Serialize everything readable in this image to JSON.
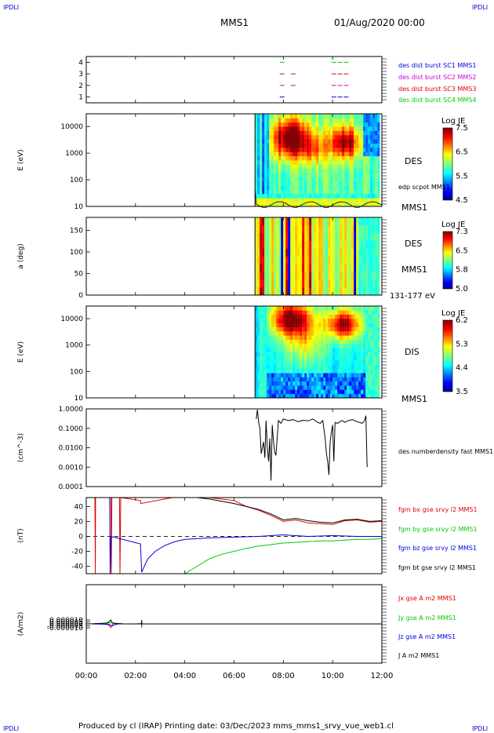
{
  "header": {
    "corner_label": "IPDLI",
    "spacecraft": "MMS1",
    "date": "01/Aug/2020 00:00"
  },
  "footer": {
    "text": "Produced by cl (IRAP)   Printing date: 03/Dec/2023   mms_mms1_srvy_vue_web1.cl"
  },
  "colors": {
    "red": "#e00000",
    "green": "#00cc00",
    "blue": "#0000e0",
    "magenta": "#d000d0",
    "black": "#000000"
  },
  "chart_data": [
    {
      "type": "scatter",
      "panel": "burst availability",
      "ylim": [
        0.5,
        4.5
      ],
      "yticks": [
        "1",
        "2",
        "3",
        "4"
      ],
      "series": [
        {
          "name": "des dist burst SC1 MMS1",
          "color": "#0000e0",
          "y": 1,
          "x": [
            7.95,
            10.05,
            10.3,
            10.55
          ]
        },
        {
          "name": "des dist burst SC2 MMS2",
          "color": "#d000d0",
          "y": 2,
          "x": [
            7.95,
            8.4,
            10.05,
            10.3,
            10.55
          ]
        },
        {
          "name": "des dist burst SC3 MMS3",
          "color": "#e00000",
          "y": 3,
          "x": [
            7.95,
            8.4,
            10.05,
            10.3,
            10.55
          ]
        },
        {
          "name": "des dist burst SC4 MMS4",
          "color": "#00cc00",
          "y": 4,
          "x": [
            7.95,
            10.05,
            10.3,
            10.55
          ]
        }
      ]
    },
    {
      "type": "heatmap",
      "panel": "DES energy spectrogram",
      "ylabel": "E (eV)",
      "yscale": "log",
      "ylim": [
        10,
        30000
      ],
      "yticks": [
        "10",
        "100",
        "1000",
        "10000"
      ],
      "data_start": 6.85,
      "colorbar": {
        "title": "Log JE",
        "ticks": [
          "7.5",
          "6.5",
          "5.5",
          "4.5"
        ],
        "range": [
          4.5,
          7.6
        ]
      },
      "right_labels": [
        "DES",
        "edp scpot MMS1",
        "MMS1"
      ],
      "hotspots": [
        {
          "t": 8.2,
          "logE": 3.15,
          "v": 7.5
        },
        {
          "t": 9.1,
          "logE": 3.0,
          "v": 6.8
        },
        {
          "t": 10.5,
          "logE": 2.95,
          "v": 7.2
        }
      ]
    },
    {
      "type": "heatmap",
      "panel": "DES pitch angle",
      "ylabel": "a (deg)",
      "ylim": [
        0,
        180
      ],
      "yticks": [
        "0",
        "50",
        "100",
        "150"
      ],
      "data_start": 6.85,
      "colorbar": {
        "title": "Log JE",
        "ticks": [
          "7.3",
          "6.5",
          "5.8",
          "5.0"
        ],
        "range": [
          5.0,
          7.3
        ]
      },
      "right_labels": [
        "DES",
        "MMS1",
        "131-177 eV"
      ]
    },
    {
      "type": "heatmap",
      "panel": "DIS energy spectrogram",
      "ylabel": "E (eV)",
      "yscale": "log",
      "ylim": [
        10,
        30000
      ],
      "yticks": [
        "10",
        "100",
        "1000",
        "10000"
      ],
      "data_start": 6.85,
      "colorbar": {
        "title": "Log JE",
        "ticks": [
          "6.2",
          "5.3",
          "4.4",
          "3.5"
        ],
        "range": [
          3.5,
          6.2
        ]
      },
      "right_labels": [
        "DIS",
        "MMS1"
      ],
      "hotspots": [
        {
          "t": 8.3,
          "logE": 3.9,
          "v": 6.2
        },
        {
          "t": 10.4,
          "logE": 3.75,
          "v": 6.1
        }
      ]
    },
    {
      "type": "line",
      "panel": "electron density",
      "ylabel": "(cm^-3)",
      "yscale": "log",
      "ylim": [
        0.0001,
        1.0
      ],
      "yticks": [
        "0.0001",
        "0.0010",
        "0.0100",
        "0.1000",
        "1.0000"
      ],
      "series": [
        {
          "name": "des numberdensity fast MMS1",
          "color": "#000000",
          "x": [
            6.9,
            6.95,
            7.0,
            7.05,
            7.1,
            7.2,
            7.25,
            7.3,
            7.35,
            7.4,
            7.45,
            7.5,
            7.55,
            7.6,
            7.65,
            7.7,
            7.8,
            7.9,
            8.0,
            8.2,
            8.4,
            8.6,
            8.8,
            9.0,
            9.2,
            9.4,
            9.5,
            9.6,
            9.7,
            9.75,
            9.8,
            9.85,
            9.9,
            9.95,
            10.0,
            10.05,
            10.1,
            10.2,
            10.3,
            10.4,
            10.5,
            10.6,
            10.8,
            11.0,
            11.2,
            11.3,
            11.35,
            11.4
          ],
          "y": [
            0.3,
            0.9,
            0.2,
            0.1,
            0.005,
            0.02,
            0.003,
            0.25,
            0.01,
            0.002,
            0.03,
            0.0002,
            0.15,
            0.02,
            0.006,
            0.004,
            0.25,
            0.18,
            0.3,
            0.25,
            0.28,
            0.22,
            0.26,
            0.24,
            0.3,
            0.2,
            0.18,
            0.25,
            0.03,
            0.005,
            0.002,
            0.0004,
            0.02,
            0.06,
            0.15,
            0.002,
            0.2,
            0.18,
            0.22,
            0.25,
            0.2,
            0.24,
            0.28,
            0.22,
            0.18,
            0.25,
            0.45,
            0.001
          ]
        }
      ]
    },
    {
      "type": "line",
      "panel": "FGM magnetic field",
      "ylabel": "(nT)",
      "ylim": [
        -50,
        52
      ],
      "yticks": [
        "-40",
        "-20",
        "0",
        "20",
        "40"
      ],
      "series": [
        {
          "name": "fgm bx gse srvy l2 MMS1",
          "color": "#e00000",
          "x": [
            0.35,
            0.37,
            0.38,
            1.0,
            1.02,
            1.04,
            1.35,
            1.37,
            1.4,
            2.2,
            2.22,
            3.5,
            5.0,
            6.0,
            6.5,
            7.0,
            7.5,
            8.0,
            8.5,
            9.0,
            9.5,
            10.0,
            10.5,
            11.0,
            11.5,
            12.0
          ],
          "y": [
            52,
            -50,
            52,
            52,
            -50,
            52,
            52,
            -50,
            52,
            48,
            44,
            52,
            52,
            48,
            40,
            35,
            28,
            20,
            22,
            18,
            17,
            16,
            21,
            22,
            19,
            20
          ]
        },
        {
          "name": "fgm by gse srvy l2 MMS1",
          "color": "#00cc00",
          "x": [
            4.0,
            4.5,
            5.0,
            5.5,
            6.0,
            6.5,
            7.0,
            7.5,
            8.0,
            8.5,
            9.0,
            9.5,
            10.0,
            10.5,
            11.0,
            11.5,
            12.0
          ],
          "y": [
            -50,
            -40,
            -30,
            -24,
            -20,
            -16,
            -13,
            -11,
            -9,
            -8,
            -7,
            -6,
            -6,
            -5,
            -4,
            -4,
            -3
          ]
        },
        {
          "name": "fgm bz gse srvy l2 MMS1",
          "color": "#0000e0",
          "x": [
            0.95,
            0.97,
            1.0,
            2.2,
            2.25,
            2.5,
            2.8,
            3.2,
            3.6,
            4.0,
            5.0,
            6.0,
            7.0,
            8.0,
            9.0,
            10.0,
            11.0,
            12.0
          ],
          "y": [
            52,
            -50,
            0,
            -10,
            -48,
            -30,
            -20,
            -12,
            -7,
            -4,
            -2,
            -1,
            0,
            2,
            0,
            1,
            0,
            0
          ]
        },
        {
          "name": "fgm bt gse srvy l2 MMS1",
          "color": "#000000",
          "x": [
            4.5,
            5.0,
            5.5,
            6.0,
            6.5,
            7.0,
            7.5,
            8.0,
            8.5,
            9.0,
            9.5,
            10.0,
            10.5,
            11.0,
            11.5,
            12.0
          ],
          "y": [
            52,
            50,
            47,
            44,
            40,
            36,
            30,
            22,
            24,
            21,
            19,
            18,
            22,
            23,
            20,
            21
          ]
        }
      ]
    },
    {
      "type": "line",
      "panel": "current density",
      "ylabel": "(A/m2)",
      "ylim": [
        -0.0001,
        0.0001
      ],
      "yticks": [
        "-0.000010",
        "-0.000005",
        "0.000000",
        "0.000005",
        "0.000010"
      ],
      "xlabel": "",
      "xlim": [
        0,
        12
      ],
      "xticks": [
        "00:00",
        "02:00",
        "04:00",
        "06:00",
        "08:00",
        "10:00",
        "12:00"
      ],
      "series": [
        {
          "name": "Jx gse A m2 MMS1",
          "color": "#e00000",
          "x": [
            0.2,
            0.6,
            0.9,
            1.0,
            1.1,
            1.5,
            2.0,
            2.24,
            2.25,
            2.26,
            3.0
          ],
          "y": [
            0,
            1e-06,
            -2e-06,
            -9e-06,
            2e-06,
            0,
            0,
            1e-06,
            -9e-06,
            0,
            0
          ]
        },
        {
          "name": "Jy gse A m2 MMS1",
          "color": "#00cc00",
          "x": [
            0.2,
            0.8,
            1.0,
            1.2,
            2.24,
            2.25,
            2.26,
            3.0
          ],
          "y": [
            0,
            1e-06,
            3e-06,
            0,
            0,
            -3e-06,
            0,
            0
          ]
        },
        {
          "name": "Jz gse A m2 MMS1",
          "color": "#0000e0",
          "x": [
            0.2,
            0.6,
            0.9,
            1.05,
            1.15,
            1.3,
            2.0,
            3.0
          ],
          "y": [
            0,
            -5e-07,
            -1e-06,
            -5e-06,
            -2e-06,
            0,
            0,
            0
          ]
        },
        {
          "name": "J A m2 MMS1",
          "color": "#000000",
          "x": [
            0.0,
            0.3,
            0.6,
            0.8,
            0.9,
            1.0,
            1.05,
            1.1,
            1.2,
            1.5,
            2.0,
            2.24,
            2.25,
            2.26,
            3.0,
            4.0,
            6.0,
            8.0,
            10.0,
            12.0
          ],
          "y": [
            0,
            5e-07,
            1.5e-06,
            2e-06,
            4e-06,
            1e-05,
            3e-06,
            2e-06,
            1e-06,
            2e-07,
            0,
            0,
            1e-05,
            0,
            0,
            0,
            0,
            0,
            0,
            0
          ]
        }
      ]
    }
  ]
}
